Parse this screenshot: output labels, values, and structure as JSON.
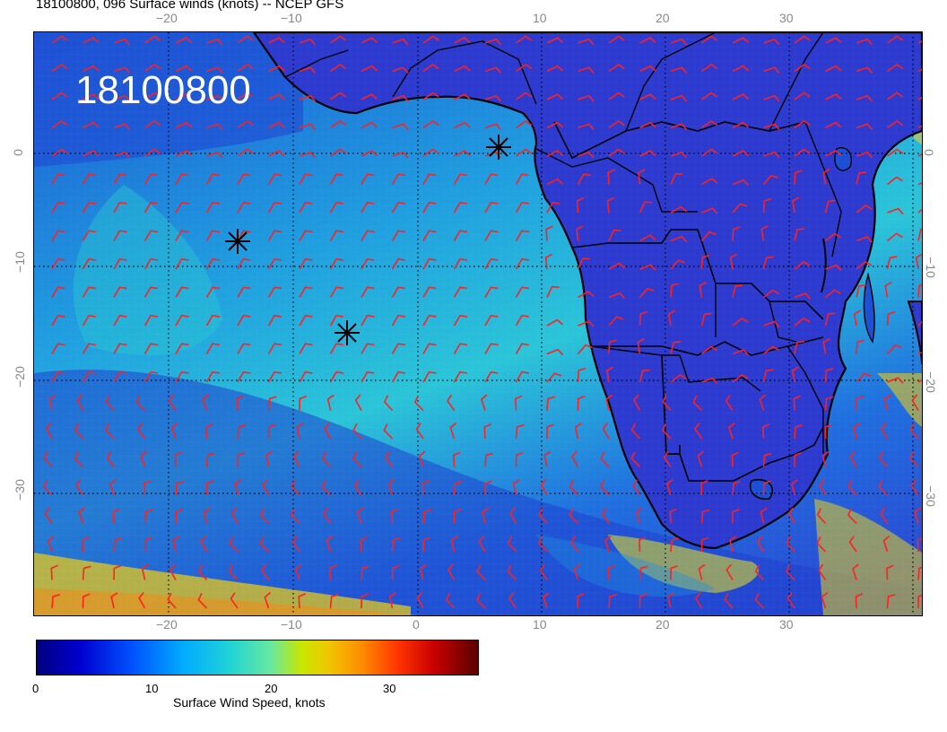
{
  "title": "18100800, 096 Surface winds (knots) -- NCEP GFS",
  "stamp": "18100800",
  "axes": {
    "x_ticks": [
      "−20",
      "−10",
      "0",
      "10",
      "20",
      "30"
    ],
    "y_ticks": [
      "0",
      "−10",
      "−20",
      "−30"
    ]
  },
  "colorbar": {
    "label": "Surface Wind Speed, knots",
    "ticks": [
      "0",
      "10",
      "20",
      "30"
    ],
    "range": [
      0,
      37
    ]
  },
  "markers": [
    {
      "name": "star-marker-1",
      "lon": 6.5,
      "lat": 0.3
    },
    {
      "name": "star-marker-2",
      "lon": -14.5,
      "lat": -8.3
    },
    {
      "name": "star-marker-3",
      "lon": -5.5,
      "lat": -16.1
    }
  ],
  "colors": {
    "barb": "#ff2020",
    "coast": "#000000",
    "grid": "#000000"
  }
}
